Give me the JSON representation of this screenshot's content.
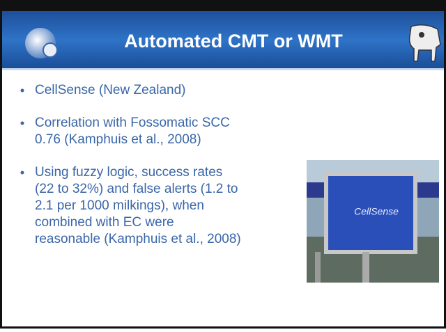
{
  "header": {
    "title": "Automated CMT or WMT"
  },
  "bullets": [
    [
      "CellSense (New Zealand)"
    ],
    [
      "Correlation with Fossomatic SCC",
      "0.76 (Kamphuis et al., 2008)"
    ],
    [
      "Using fuzzy logic, success rates",
      "(22 to 32%) and false alerts (1.2 to",
      "2.1 per 1000 milkings), when",
      "combined with EC were",
      "reasonable (Kamphuis et al., 2008)"
    ]
  ],
  "photo": {
    "label": "CellSense"
  }
}
